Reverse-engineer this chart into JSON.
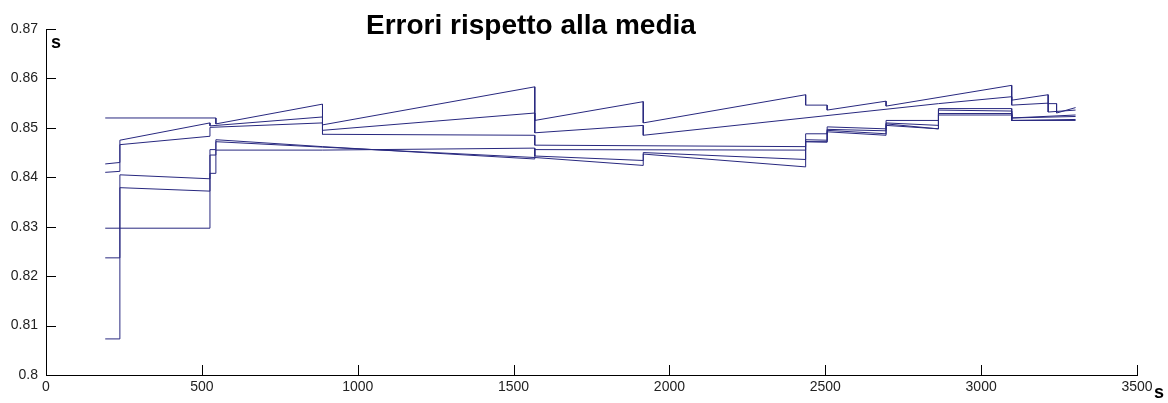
{
  "chart_data": {
    "type": "line",
    "title": "Errori rispetto alla media",
    "xlabel": "s",
    "ylabel": "s",
    "xlim": [
      0,
      3500
    ],
    "xticks": [
      0,
      500,
      1000,
      1500,
      2000,
      2500,
      3000,
      3500
    ],
    "ylim": [
      0.8,
      0.87
    ],
    "yticks": [
      0.8,
      0.81,
      0.82,
      0.83,
      0.84,
      0.85,
      0.86,
      0.87
    ],
    "series": [
      {
        "color": "#28287f",
        "x": [
          190,
          545,
          545,
          887,
          887,
          1568,
          1568,
          1916,
          1916,
          2437,
          2437,
          2506,
          2506,
          2695,
          2695,
          3098,
          3098,
          3215,
          3215,
          3242,
          3242,
          3303
        ],
        "values": [
          0.852,
          0.852,
          0.8508,
          0.8548,
          0.8506,
          0.8583,
          0.8515,
          0.8553,
          0.851,
          0.8567,
          0.8546,
          0.8546,
          0.8536,
          0.8554,
          0.8544,
          0.8586,
          0.8556,
          0.8567,
          0.8549,
          0.8549,
          0.853,
          0.8541
        ]
      },
      {
        "color": "#28287f",
        "x": [
          190,
          237,
          237,
          526,
          526,
          887,
          887,
          1568,
          1568,
          1916,
          1916,
          2863,
          2863,
          3098,
          3098,
          3215,
          3215,
          3303
        ],
        "values": [
          0.8427,
          0.843,
          0.8475,
          0.851,
          0.8504,
          0.8522,
          0.8495,
          0.853,
          0.849,
          0.8505,
          0.8485,
          0.8549,
          0.8549,
          0.8563,
          0.8546,
          0.855,
          0.8532,
          0.8536
        ]
      },
      {
        "color": "#28287f",
        "x": [
          190,
          237,
          237,
          526,
          526,
          887,
          887,
          1568,
          1568,
          2437,
          2437,
          2506,
          2506,
          2695,
          2695,
          2863,
          2863,
          3098,
          3098,
          3303
        ],
        "values": [
          0.841,
          0.8412,
          0.8466,
          0.8483,
          0.8501,
          0.851,
          0.8487,
          0.8485,
          0.8465,
          0.8462,
          0.8488,
          0.8488,
          0.8502,
          0.8498,
          0.8515,
          0.8515,
          0.8539,
          0.8539,
          0.852,
          0.8526
        ]
      },
      {
        "color": "#28287f",
        "x": [
          190,
          526,
          526,
          545,
          545,
          887,
          1568,
          1568,
          2437,
          2437,
          2506,
          2506,
          2695,
          2695,
          2863,
          2863,
          3098,
          3098,
          3303
        ],
        "values": [
          0.8297,
          0.8297,
          0.8456,
          0.8456,
          0.8476,
          0.8462,
          0.8437,
          0.8456,
          0.8455,
          0.8476,
          0.8475,
          0.8497,
          0.8494,
          0.851,
          0.8505,
          0.8536,
          0.8534,
          0.852,
          0.8523
        ]
      },
      {
        "color": "#28287f",
        "x": [
          190,
          237,
          237,
          526,
          526,
          545,
          545,
          887,
          1568,
          1568,
          1916,
          1916,
          2437,
          2437,
          2506,
          2506,
          2695,
          2695,
          2863,
          2863,
          3098,
          3098,
          3303
        ],
        "values": [
          0.8237,
          0.8237,
          0.8379,
          0.8372,
          0.8445,
          0.8445,
          0.8455,
          0.8455,
          0.8459,
          0.8443,
          0.8434,
          0.845,
          0.8436,
          0.8472,
          0.8472,
          0.8495,
          0.8488,
          0.8508,
          0.8498,
          0.8529,
          0.8529,
          0.8515,
          0.8517
        ]
      },
      {
        "color": "#28287f",
        "x": [
          190,
          237,
          237,
          526,
          526,
          545,
          545,
          887,
          1568,
          1568,
          1916,
          1916,
          2437,
          2437,
          2506,
          2506,
          2695,
          2695,
          2863,
          2863,
          3098,
          3098,
          3303
        ],
        "values": [
          0.8073,
          0.8073,
          0.8405,
          0.8397,
          0.8408,
          0.8408,
          0.8472,
          0.8461,
          0.844,
          0.844,
          0.8424,
          0.8447,
          0.8421,
          0.8472,
          0.8471,
          0.8492,
          0.8485,
          0.8505,
          0.8498,
          0.8526,
          0.8526,
          0.8515,
          0.8515
        ]
      }
    ]
  }
}
